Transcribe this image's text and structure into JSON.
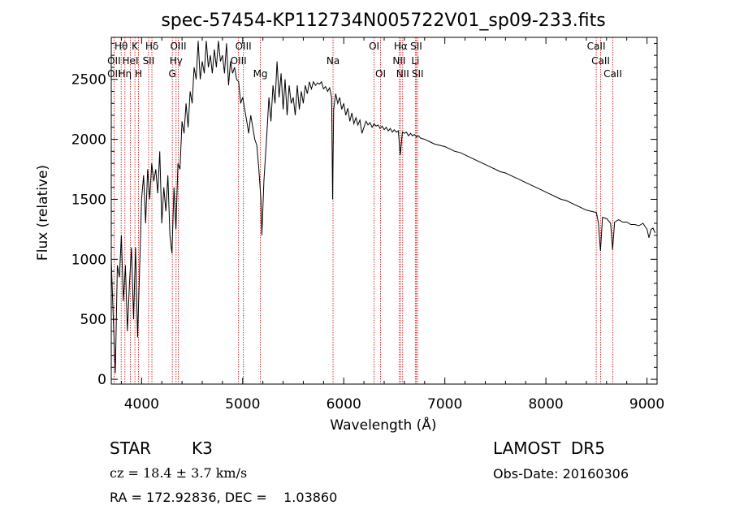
{
  "chart_data": {
    "type": "line",
    "title": "spec-57454-KP112734N005722V01_sp09-233.fits",
    "xlabel": "Wavelength (Å)",
    "ylabel": "Flux (relative)",
    "xlim": [
      3700,
      9100
    ],
    "ylim": [
      -40,
      2850
    ],
    "xticks": [
      4000,
      5000,
      6000,
      7000,
      8000,
      9000
    ],
    "yticks": [
      0,
      500,
      1000,
      1500,
      2000,
      2500
    ],
    "series": [
      {
        "values": [
          [
            3700,
            1000
          ],
          [
            3720,
            500
          ],
          [
            3740,
            50
          ],
          [
            3760,
            950
          ],
          [
            3780,
            850
          ],
          [
            3800,
            1200
          ],
          [
            3820,
            650
          ],
          [
            3840,
            950
          ],
          [
            3860,
            400
          ],
          [
            3880,
            800
          ],
          [
            3900,
            1100
          ],
          [
            3920,
            500
          ],
          [
            3940,
            1100
          ],
          [
            3960,
            350
          ],
          [
            3980,
            900
          ],
          [
            4000,
            1500
          ],
          [
            4020,
            1700
          ],
          [
            4040,
            1300
          ],
          [
            4060,
            1750
          ],
          [
            4080,
            1500
          ],
          [
            4100,
            1800
          ],
          [
            4120,
            1650
          ],
          [
            4140,
            1750
          ],
          [
            4160,
            1550
          ],
          [
            4180,
            1900
          ],
          [
            4200,
            1300
          ],
          [
            4220,
            1600
          ],
          [
            4240,
            1400
          ],
          [
            4260,
            1700
          ],
          [
            4280,
            1200
          ],
          [
            4300,
            1050
          ],
          [
            4320,
            1600
          ],
          [
            4340,
            1250
          ],
          [
            4360,
            1800
          ],
          [
            4380,
            1750
          ],
          [
            4400,
            2150
          ],
          [
            4420,
            2050
          ],
          [
            4440,
            2300
          ],
          [
            4460,
            2100
          ],
          [
            4480,
            2400
          ],
          [
            4500,
            2300
          ],
          [
            4520,
            2600
          ],
          [
            4540,
            2500
          ],
          [
            4560,
            2820
          ],
          [
            4580,
            2500
          ],
          [
            4600,
            2650
          ],
          [
            4620,
            2550
          ],
          [
            4640,
            2820
          ],
          [
            4660,
            2600
          ],
          [
            4680,
            2700
          ],
          [
            4700,
            2550
          ],
          [
            4720,
            2750
          ],
          [
            4740,
            2600
          ],
          [
            4760,
            2820
          ],
          [
            4780,
            2650
          ],
          [
            4800,
            2700
          ],
          [
            4820,
            2550
          ],
          [
            4840,
            2800
          ],
          [
            4860,
            2450
          ],
          [
            4880,
            2650
          ],
          [
            4900,
            2550
          ],
          [
            4920,
            2600
          ],
          [
            4940,
            2500
          ],
          [
            4960,
            2480
          ],
          [
            4980,
            2300
          ],
          [
            5000,
            2350
          ],
          [
            5020,
            2250
          ],
          [
            5040,
            2150
          ],
          [
            5060,
            2050
          ],
          [
            5080,
            2200
          ],
          [
            5100,
            2100
          ],
          [
            5120,
            2000
          ],
          [
            5140,
            1950
          ],
          [
            5160,
            1750
          ],
          [
            5180,
            1500
          ],
          [
            5190,
            1200
          ],
          [
            5210,
            1650
          ],
          [
            5240,
            2050
          ],
          [
            5260,
            2350
          ],
          [
            5280,
            2150
          ],
          [
            5300,
            2450
          ],
          [
            5320,
            2300
          ],
          [
            5340,
            2650
          ],
          [
            5360,
            2350
          ],
          [
            5380,
            2550
          ],
          [
            5400,
            2250
          ],
          [
            5420,
            2500
          ],
          [
            5440,
            2200
          ],
          [
            5460,
            2450
          ],
          [
            5480,
            2300
          ],
          [
            5500,
            2350
          ],
          [
            5520,
            2200
          ],
          [
            5540,
            2450
          ],
          [
            5560,
            2250
          ],
          [
            5580,
            2400
          ],
          [
            5600,
            2300
          ],
          [
            5620,
            2450
          ],
          [
            5640,
            2380
          ],
          [
            5660,
            2480
          ],
          [
            5680,
            2420
          ],
          [
            5700,
            2480
          ],
          [
            5720,
            2450
          ],
          [
            5740,
            2470
          ],
          [
            5760,
            2460
          ],
          [
            5780,
            2480
          ],
          [
            5800,
            2420
          ],
          [
            5820,
            2440
          ],
          [
            5840,
            2400
          ],
          [
            5860,
            2430
          ],
          [
            5880,
            2350
          ],
          [
            5890,
            1500
          ],
          [
            5900,
            2250
          ],
          [
            5920,
            2380
          ],
          [
            5940,
            2300
          ],
          [
            5960,
            2350
          ],
          [
            5980,
            2250
          ],
          [
            6000,
            2300
          ],
          [
            6020,
            2200
          ],
          [
            6040,
            2260
          ],
          [
            6060,
            2150
          ],
          [
            6080,
            2220
          ],
          [
            6100,
            2130
          ],
          [
            6120,
            2180
          ],
          [
            6140,
            2120
          ],
          [
            6160,
            2160
          ],
          [
            6180,
            2050
          ],
          [
            6200,
            2100
          ],
          [
            6220,
            2150
          ],
          [
            6240,
            2120
          ],
          [
            6260,
            2140
          ],
          [
            6280,
            2100
          ],
          [
            6300,
            2130
          ],
          [
            6320,
            2110
          ],
          [
            6340,
            2120
          ],
          [
            6360,
            2090
          ],
          [
            6380,
            2110
          ],
          [
            6400,
            2080
          ],
          [
            6420,
            2100
          ],
          [
            6440,
            2070
          ],
          [
            6460,
            2090
          ],
          [
            6480,
            2060
          ],
          [
            6500,
            2080
          ],
          [
            6520,
            2060
          ],
          [
            6540,
            2070
          ],
          [
            6560,
            1870
          ],
          [
            6580,
            2060
          ],
          [
            6600,
            2050
          ],
          [
            6620,
            2060
          ],
          [
            6640,
            2030
          ],
          [
            6660,
            2050
          ],
          [
            6680,
            2030
          ],
          [
            6700,
            2040
          ],
          [
            6720,
            2020
          ],
          [
            6740,
            2030
          ],
          [
            6760,
            2010
          ],
          [
            6800,
            2000
          ],
          [
            6850,
            1980
          ],
          [
            6900,
            1960
          ],
          [
            6950,
            1950
          ],
          [
            7000,
            1940
          ],
          [
            7050,
            1920
          ],
          [
            7100,
            1900
          ],
          [
            7150,
            1890
          ],
          [
            7200,
            1870
          ],
          [
            7250,
            1850
          ],
          [
            7300,
            1830
          ],
          [
            7350,
            1810
          ],
          [
            7400,
            1790
          ],
          [
            7450,
            1770
          ],
          [
            7500,
            1750
          ],
          [
            7550,
            1730
          ],
          [
            7600,
            1720
          ],
          [
            7650,
            1700
          ],
          [
            7700,
            1680
          ],
          [
            7750,
            1660
          ],
          [
            7800,
            1640
          ],
          [
            7850,
            1620
          ],
          [
            7900,
            1600
          ],
          [
            7950,
            1580
          ],
          [
            8000,
            1560
          ],
          [
            8050,
            1540
          ],
          [
            8100,
            1520
          ],
          [
            8150,
            1500
          ],
          [
            8200,
            1490
          ],
          [
            8250,
            1470
          ],
          [
            8300,
            1450
          ],
          [
            8350,
            1430
          ],
          [
            8400,
            1410
          ],
          [
            8450,
            1400
          ],
          [
            8500,
            1390
          ],
          [
            8520,
            1300
          ],
          [
            8540,
            1070
          ],
          [
            8560,
            1350
          ],
          [
            8600,
            1340
          ],
          [
            8640,
            1300
          ],
          [
            8660,
            1080
          ],
          [
            8680,
            1310
          ],
          [
            8720,
            1330
          ],
          [
            8760,
            1310
          ],
          [
            8800,
            1310
          ],
          [
            8840,
            1290
          ],
          [
            8880,
            1290
          ],
          [
            8920,
            1280
          ],
          [
            8960,
            1300
          ],
          [
            9000,
            1250
          ],
          [
            9020,
            1180
          ],
          [
            9040,
            1250
          ],
          [
            9060,
            1260
          ],
          [
            9080,
            1220
          ]
        ]
      }
    ],
    "lines": [
      {
        "label": "Hθ",
        "x": 3798,
        "row": 1
      },
      {
        "label": "OII",
        "x": 3727,
        "row": 2
      },
      {
        "label": "OII",
        "x": 3727,
        "row": 3
      },
      {
        "label": "Hη",
        "x": 3835,
        "row": 3
      },
      {
        "label": "HeI",
        "x": 3889,
        "row": 2
      },
      {
        "label": "K",
        "x": 3934,
        "row": 1
      },
      {
        "label": "H",
        "x": 3969,
        "row": 3
      },
      {
        "label": "SII",
        "x": 4069,
        "row": 2
      },
      {
        "label": "Hδ",
        "x": 4102,
        "row": 1
      },
      {
        "label": "OIII",
        "x": 4363,
        "row": 1
      },
      {
        "label": "Hγ",
        "x": 4341,
        "row": 2
      },
      {
        "label": "G",
        "x": 4304,
        "row": 3
      },
      {
        "label": "OIII",
        "x": 5007,
        "row": 1
      },
      {
        "label": "OIII",
        "x": 4959,
        "row": 2
      },
      {
        "label": "Mg",
        "x": 5175,
        "row": 3
      },
      {
        "label": "Na",
        "x": 5894,
        "row": 2
      },
      {
        "label": "OI",
        "x": 6300,
        "row": 1
      },
      {
        "label": "OI",
        "x": 6364,
        "row": 3
      },
      {
        "label": "Hα",
        "x": 6563,
        "row": 1
      },
      {
        "label": "NII",
        "x": 6548,
        "row": 2
      },
      {
        "label": "NII",
        "x": 6583,
        "row": 3
      },
      {
        "label": "SII",
        "x": 6717,
        "row": 1
      },
      {
        "label": "Li",
        "x": 6708,
        "row": 2
      },
      {
        "label": "SII",
        "x": 6731,
        "row": 3
      },
      {
        "label": "CaII",
        "x": 8498,
        "row": 1
      },
      {
        "label": "CaII",
        "x": 8542,
        "row": 2
      },
      {
        "label": "CaII",
        "x": 8662,
        "row": 3
      }
    ],
    "grid": false,
    "colors": {
      "spectrum": "#000000",
      "lines": "#cc0000"
    }
  },
  "info": {
    "class_label": "STAR",
    "subclass_label": "K3",
    "survey": "LAMOST  DR5",
    "redshift": "cz = 18.4 ± 3.7 km/s",
    "obs_date": "Obs-Date: 20160306",
    "coords": "RA = 172.92836, DEC =    1.03860"
  }
}
